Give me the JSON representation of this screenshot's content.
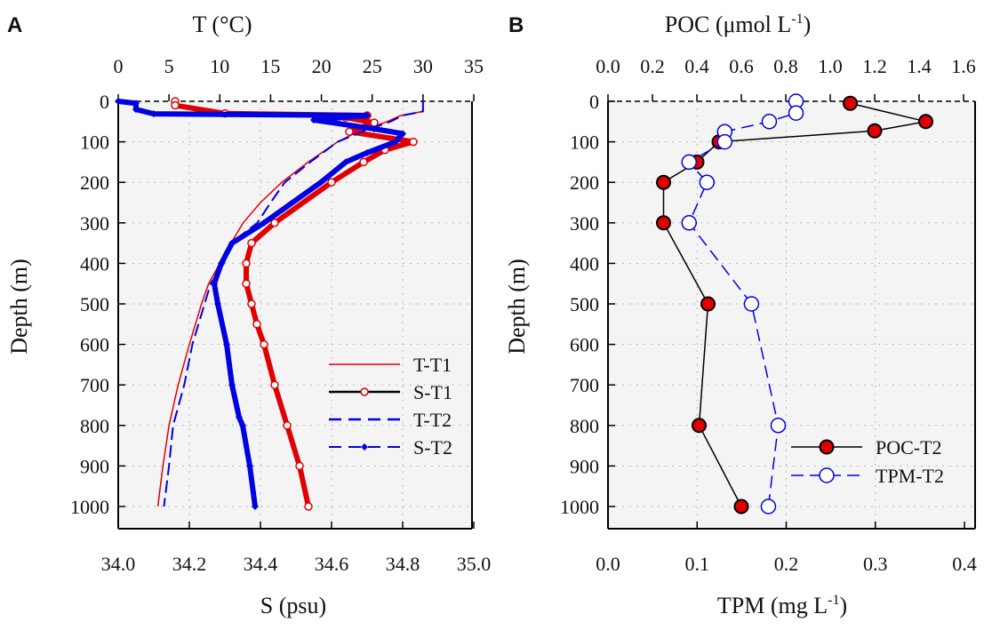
{
  "chart_data": [
    {
      "panel": "A",
      "type": "line",
      "top_axis": {
        "label": "T (°C)",
        "range": [
          0,
          35
        ],
        "ticks": [
          "0",
          "5",
          "10",
          "15",
          "20",
          "25",
          "30",
          "35"
        ]
      },
      "bottom_axis": {
        "label": "S (psu)",
        "range": [
          34.0,
          35.0
        ],
        "ticks": [
          "34.0",
          "34.2",
          "34.4",
          "34.6",
          "34.8",
          "35.0"
        ]
      },
      "y_axis": {
        "label": "Depth (m)",
        "range": [
          0,
          1000
        ],
        "inverted": true,
        "ticks": [
          "0",
          "100",
          "200",
          "300",
          "400",
          "500",
          "600",
          "700",
          "800",
          "900",
          "1000"
        ]
      },
      "grid": true,
      "legend_position": "lower-right",
      "series": [
        {
          "name": "T-T1",
          "axis": "top",
          "color": "#e00000",
          "style": "solid-thin",
          "depth": [
            0,
            25,
            35,
            50,
            75,
            100,
            150,
            200,
            250,
            300,
            350,
            400,
            450,
            500,
            600,
            700,
            800,
            900,
            1000
          ],
          "values": [
            30,
            30,
            27.8,
            26.5,
            23.6,
            21.6,
            18.7,
            16.1,
            14.0,
            12.3,
            11.1,
            10.0,
            8.9,
            8.2,
            7.0,
            5.9,
            5.0,
            4.4,
            3.9
          ]
        },
        {
          "name": "S-T1",
          "axis": "bottom",
          "color": "#e00000",
          "style": "line-open-circle",
          "depth": [
            0,
            10,
            30,
            35,
            40,
            53,
            75,
            100,
            120,
            150,
            200,
            300,
            350,
            400,
            450,
            500,
            550,
            600,
            700,
            800,
            900,
            1000
          ],
          "values": [
            34.16,
            34.16,
            34.3,
            34.7,
            34.64,
            34.72,
            34.65,
            34.83,
            34.75,
            34.69,
            34.6,
            34.44,
            34.375,
            34.36,
            34.36,
            34.375,
            34.39,
            34.41,
            34.44,
            34.475,
            34.51,
            34.535
          ]
        },
        {
          "name": "T-T2",
          "axis": "top",
          "color": "#0000e0",
          "style": "dashed",
          "depth": [
            0,
            25,
            35,
            50,
            75,
            100,
            150,
            200,
            250,
            300,
            350,
            400,
            450,
            500,
            600,
            700,
            800,
            900,
            1000
          ],
          "values": [
            30,
            30,
            28,
            26.8,
            24,
            21.6,
            18.9,
            16.4,
            15,
            13.7,
            11.1,
            10.4,
            9.1,
            8.5,
            7.3,
            6.5,
            5.4,
            5.0,
            4.5
          ]
        },
        {
          "name": "S-T2",
          "axis": "bottom",
          "color": "#0000e0",
          "style": "dashed-diamond",
          "depth": [
            0,
            5,
            20,
            31,
            35,
            46,
            68,
            80,
            100,
            127,
            150,
            200,
            300,
            350,
            400,
            450,
            500,
            600,
            700,
            780,
            800,
            900,
            1000
          ],
          "values": [
            34.0,
            34.05,
            34.05,
            34.1,
            34.7,
            34.55,
            34.72,
            34.8,
            34.78,
            34.7,
            34.64,
            34.57,
            34.41,
            34.32,
            34.29,
            34.27,
            34.28,
            34.305,
            34.32,
            34.34,
            34.35,
            34.37,
            34.385
          ]
        }
      ]
    },
    {
      "panel": "B",
      "type": "line",
      "top_axis": {
        "label": "POC (μmol L",
        "label_sup": "-1",
        "label_end": ")",
        "range": [
          0,
          1.6
        ],
        "ticks": [
          "0.0",
          "0.2",
          "0.4",
          "0.6",
          "0.8",
          "1.0",
          "1.2",
          "1.4",
          "1.6"
        ]
      },
      "bottom_axis": {
        "label": "TPM (mg L",
        "label_sup": "-1",
        "label_end": ")",
        "range": [
          0,
          0.4
        ],
        "ticks": [
          "0.0",
          "0.1",
          "0.2",
          "0.3",
          "0.4"
        ]
      },
      "y_axis": {
        "label": "Depth (m)",
        "range": [
          0,
          1000
        ],
        "inverted": true,
        "ticks": [
          "0",
          "100",
          "200",
          "300",
          "400",
          "500",
          "600",
          "700",
          "800",
          "900",
          "1000"
        ]
      },
      "grid": true,
      "legend_position": "lower-right",
      "series": [
        {
          "name": "POC-T2",
          "axis": "top",
          "color": "#e00000",
          "depth": [
            5,
            50,
            73,
            100,
            150,
            200,
            300,
            500,
            800,
            1000
          ],
          "values": [
            1.09,
            1.43,
            1.2,
            0.5,
            0.4,
            0.25,
            0.25,
            0.45,
            0.41,
            0.6
          ]
        },
        {
          "name": "TPM-T2",
          "axis": "bottom",
          "color": "#0000e0",
          "depth": [
            0,
            29,
            50,
            75,
            100,
            150,
            200,
            300,
            500,
            800,
            1000
          ],
          "values": [
            0.211,
            0.211,
            0.181,
            0.131,
            0.131,
            0.091,
            0.111,
            0.091,
            0.161,
            0.191,
            0.18
          ]
        }
      ]
    }
  ]
}
